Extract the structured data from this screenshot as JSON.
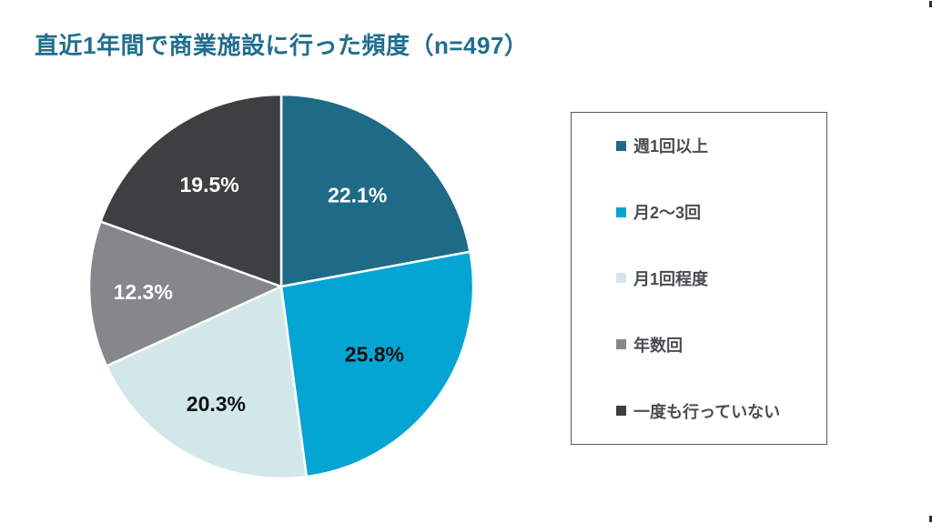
{
  "page": {
    "title": "直近1年間で商業施設に行った頻度（n=497）",
    "title_color": "#206e8e",
    "background": "#ffffff"
  },
  "chart_data": {
    "type": "pie",
    "title": "直近1年間で商業施設に行った頻度（n=497）",
    "sample_label": "n=497",
    "value_suffix": "%",
    "start_angle_deg": 0,
    "direction": "clockwise",
    "legend_position": "right",
    "grid": false,
    "slices": [
      {
        "label": "週1回以上",
        "value": 22.1,
        "display": "22.1%",
        "color": "#1e6a87",
        "text_color": "#ffffff"
      },
      {
        "label": "月2〜3回",
        "value": 25.8,
        "display": "25.8%",
        "color": "#04a5d3",
        "text_color": "#111111"
      },
      {
        "label": "月1回程度",
        "value": 20.3,
        "display": "20.3%",
        "color": "#d2e7ea",
        "text_color": "#111111"
      },
      {
        "label": "年数回",
        "value": 12.3,
        "display": "12.3%",
        "color": "#85878a",
        "text_color": "#ffffff"
      },
      {
        "label": "一度も行っていない",
        "value": 19.5,
        "display": "19.5%",
        "color": "#3e3f41",
        "text_color": "#ffffff"
      }
    ],
    "legend_border_color": "#58595b",
    "legend_text_color": "#4a4d4f"
  }
}
